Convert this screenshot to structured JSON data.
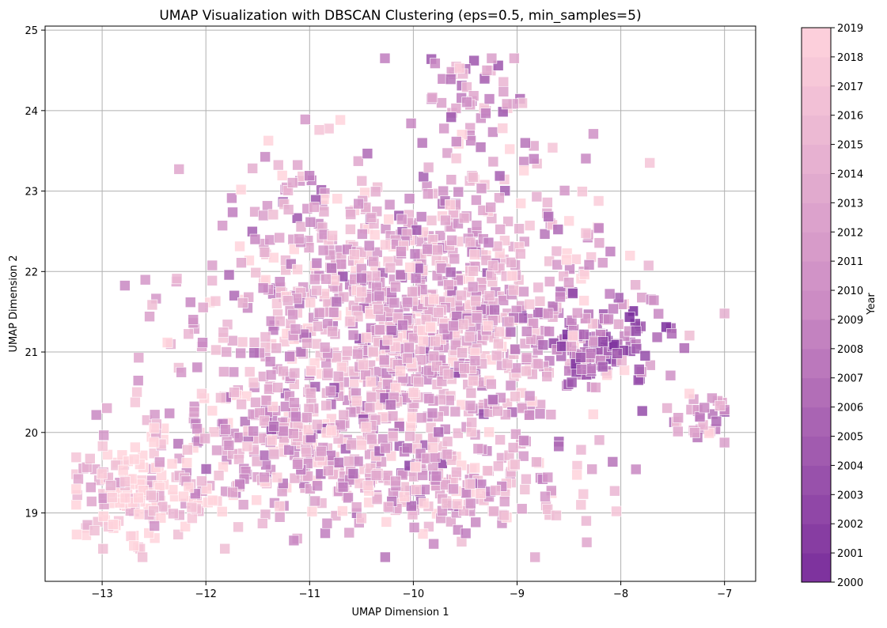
{
  "chart_data": {
    "type": "scatter",
    "title": "UMAP Visualization with DBSCAN Clustering (eps=0.5, min_samples=5)",
    "xlabel": "UMAP Dimension 1",
    "ylabel": "UMAP Dimension 2",
    "xlim": [
      -13.55,
      -6.7
    ],
    "ylim": [
      18.15,
      25.05
    ],
    "xticks": [
      -13,
      -12,
      -11,
      -10,
      -9,
      -8,
      -7
    ],
    "xtick_labels": [
      "−13",
      "−12",
      "−11",
      "−10",
      "−9",
      "−8",
      "−7"
    ],
    "yticks": [
      19,
      20,
      21,
      22,
      23,
      24,
      25
    ],
    "ytick_labels": [
      "19",
      "20",
      "21",
      "22",
      "23",
      "24",
      "25"
    ],
    "grid": true,
    "marker": "square",
    "color_by": "Year",
    "colorbar": {
      "label": "Year",
      "min": 2000,
      "max": 2019,
      "ticks": [
        "2000",
        "2001",
        "2002",
        "2003",
        "2004",
        "2005",
        "2006",
        "2007",
        "2008",
        "2009",
        "2010",
        "2011",
        "2012",
        "2013",
        "2014",
        "2015",
        "2016",
        "2017",
        "2018",
        "2019"
      ],
      "color_low": "#7a2e9c",
      "color_high": "#ffd3dc"
    },
    "point_count": 2000,
    "points_description_note": "",
    "clusters": [
      {
        "cx": -10.1,
        "cy": 21.4,
        "sx": 0.95,
        "sy": 0.95,
        "weight": 0.62,
        "year_mean": 2013
      },
      {
        "cx": -12.65,
        "cy": 19.2,
        "sx": 0.35,
        "sy": 0.32,
        "weight": 0.08,
        "year_mean": 2018
      },
      {
        "cx": -9.4,
        "cy": 24.2,
        "sx": 0.3,
        "sy": 0.35,
        "weight": 0.03,
        "year_mean": 2011
      },
      {
        "cx": -7.2,
        "cy": 20.2,
        "sx": 0.15,
        "sy": 0.18,
        "weight": 0.02,
        "year_mean": 2011
      },
      {
        "cx": -8.3,
        "cy": 21.1,
        "sx": 0.35,
        "sy": 0.25,
        "weight": 0.06,
        "year_mean": 2006
      },
      {
        "cx": -9.6,
        "cy": 19.3,
        "sx": 0.6,
        "sy": 0.25,
        "weight": 0.08,
        "year_mean": 2014
      },
      {
        "cx": -11.2,
        "cy": 19.8,
        "sx": 0.7,
        "sy": 0.4,
        "weight": 0.11,
        "year_mean": 2013
      }
    ]
  }
}
